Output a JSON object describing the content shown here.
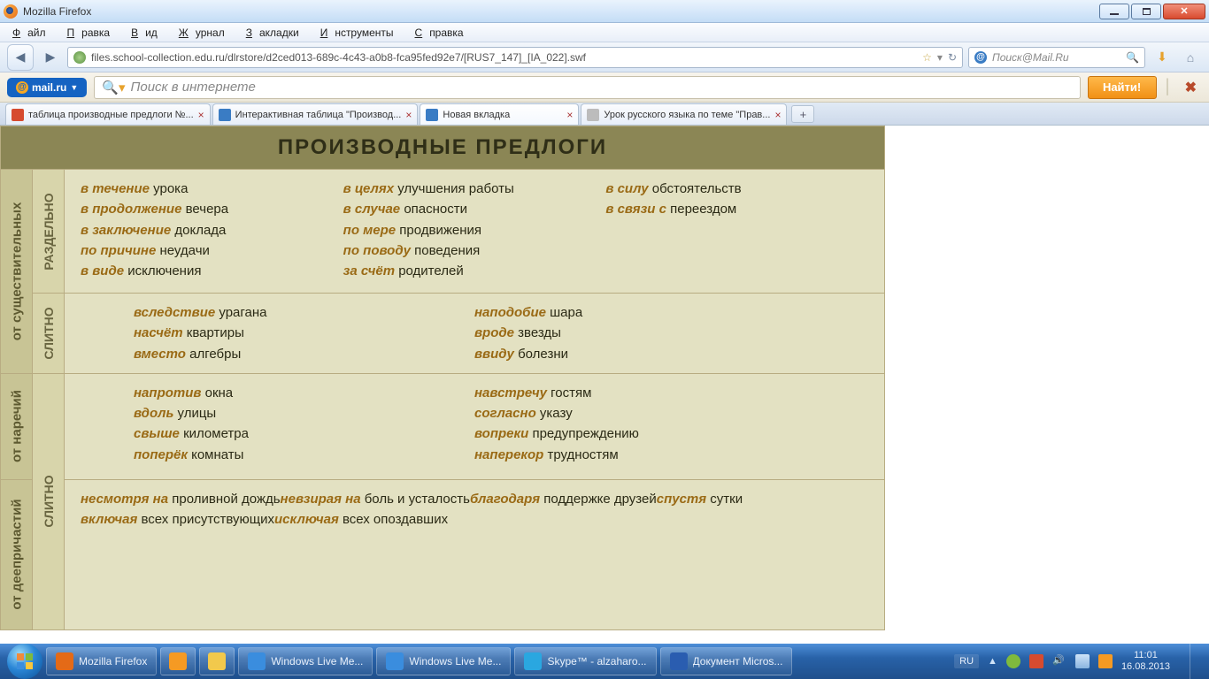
{
  "window": {
    "title": "Mozilla Firefox"
  },
  "menu": {
    "file": "Файл",
    "edit": "Правка",
    "view": "Вид",
    "history": "Журнал",
    "bookmarks": "Закладки",
    "tools": "Инструменты",
    "help": "Справка"
  },
  "url": "files.school-collection.edu.ru/dlrstore/d2ced013-689c-4c43-a0b8-fca95fed92e7/[RUS7_147]_[IA_022].swf",
  "search2": {
    "placeholder": "Поиск@Mail.Ru"
  },
  "mailbar": {
    "badge": "mail.ru",
    "placeholder": "Поиск в интернете",
    "find": "Найти!"
  },
  "tabs": [
    {
      "label": "таблица производные предлоги №...",
      "iconColor": "#d64b2f"
    },
    {
      "label": "Интерактивная таблица \"Производ...",
      "iconColor": "#3a7cc4"
    },
    {
      "label": "Новая вкладка",
      "iconColor": "#3a7cc4",
      "active": true
    },
    {
      "label": "Урок русского языка по теме \"Прав...",
      "iconColor": "#bcbcbc"
    }
  ],
  "table": {
    "title": "ПРОИЗВОДНЫЕ ПРЕДЛОГИ",
    "colors": {
      "header_bg": "#8b8655",
      "header_text": "#2f2e17",
      "cat_bg": "#c8c495",
      "sub_bg": "#d8d5ab",
      "cell_bg": "#e3e1c2",
      "border": "#b8ac82",
      "prep": "#9a6a15",
      "word": "#2b2a15"
    },
    "cat1": "от существительных",
    "cat2": "от наречий",
    "cat3": "от деепричастий",
    "sub_sep": "РАЗДЕЛЬНО",
    "sub_tog": "СЛИТНО",
    "r1c1": [
      {
        "p": "в течение",
        "w": "урока"
      },
      {
        "p": "в продолжение",
        "w": "вечера"
      },
      {
        "p": "в заключение",
        "w": "доклада"
      },
      {
        "p": "по причине",
        "w": "неудачи"
      },
      {
        "p": "в виде",
        "w": "исключения"
      }
    ],
    "r1c2": [
      {
        "p": "в целях",
        "w": "улучшения работы"
      },
      {
        "p": "в случае",
        "w": "опасности"
      },
      {
        "p": "по мере",
        "w": "продвижения"
      },
      {
        "p": "по поводу",
        "w": "поведения"
      },
      {
        "p": "за счёт",
        "w": "родителей"
      }
    ],
    "r1c3": [
      {
        "p": "в силу",
        "w": "обстоятельств"
      },
      {
        "p": "в связи с",
        "w": "переездом"
      }
    ],
    "r2c1": [
      {
        "p": "вследствие",
        "w": "урагана"
      },
      {
        "p": "насчёт",
        "w": "квартиры"
      },
      {
        "p": "вместо",
        "w": "алгебры"
      }
    ],
    "r2c2": [
      {
        "p": "наподобие",
        "w": "шара"
      },
      {
        "p": "вроде",
        "w": "звезды"
      },
      {
        "p": "ввиду",
        "w": "болезни"
      }
    ],
    "r3c1": [
      {
        "p": "напротив",
        "w": "окна"
      },
      {
        "p": "вдоль",
        "w": "улицы"
      },
      {
        "p": "свыше",
        "w": "километра"
      },
      {
        "p": "поперёк",
        "w": "комнаты"
      }
    ],
    "r3c2": [
      {
        "p": "навстречу",
        "w": "гостям"
      },
      {
        "p": "согласно",
        "w": "указу"
      },
      {
        "p": "вопреки",
        "w": "предупреждению"
      },
      {
        "p": "наперекор",
        "w": "трудностям"
      }
    ],
    "r4": [
      {
        "p": "несмотря на",
        "w": "проливной дождь"
      },
      {
        "p": "невзирая на",
        "w": "боль и усталость"
      },
      {
        "p": "благодаря",
        "w": "поддержке друзей"
      },
      {
        "p": "спустя",
        "w": "сутки"
      },
      {
        "p": "включая",
        "w": "всех присутствующих"
      },
      {
        "p": "исключая",
        "w": "всех опоздавших"
      }
    ]
  },
  "taskbar": {
    "items": [
      {
        "label": "Mozilla Firefox",
        "icon": "#e46a17"
      },
      {
        "label": "",
        "icon": "#f59a23",
        "iconly": true
      },
      {
        "label": "",
        "icon": "#f2c94c",
        "iconly": true
      },
      {
        "label": "Windows Live Me...",
        "icon": "#3a8dde"
      },
      {
        "label": "Windows Live Me...",
        "icon": "#3a8dde"
      },
      {
        "label": "Skype™ - alzaharo...",
        "icon": "#2aa7e0"
      },
      {
        "label": "Документ Micros...",
        "icon": "#2a5db0"
      }
    ],
    "lang": "RU",
    "time": "11:01",
    "date": "16.08.2013"
  }
}
